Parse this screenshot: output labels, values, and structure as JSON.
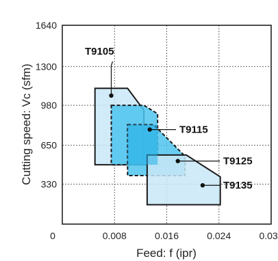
{
  "chart_data": {
    "type": "area",
    "title": "",
    "xlabel": "Feed: f (ipr)",
    "ylabel": "Cutting speed: Vc (sfm)",
    "xlim": [
      0,
      0.032
    ],
    "ylim": [
      0,
      1640
    ],
    "x_ticks": [
      "0",
      "0.008",
      "0.016",
      "0.024",
      "0.032"
    ],
    "x_tick_values": [
      0,
      0.008,
      0.016,
      0.024,
      0.032
    ],
    "y_ticks": [
      "330",
      "650",
      "980",
      "1300",
      "1640"
    ],
    "y_tick_values": [
      330,
      650,
      980,
      1300,
      1640
    ],
    "grid": true,
    "series": [
      {
        "name": "T9105",
        "color": "#c9e8f7",
        "dashed": false,
        "polygon": [
          [
            0.005,
            1120
          ],
          [
            0.01,
            1120
          ],
          [
            0.0125,
            940
          ],
          [
            0.0125,
            490
          ],
          [
            0.005,
            490
          ]
        ],
        "marker": [
          0.0075,
          1060
        ]
      },
      {
        "name": "T9115",
        "color": "#4dc4ee",
        "dashed": true,
        "polygon": [
          [
            0.0075,
            980
          ],
          [
            0.0125,
            980
          ],
          [
            0.0146,
            910
          ],
          [
            0.0146,
            490
          ],
          [
            0.0075,
            490
          ]
        ],
        "marker": [
          0.0134,
          780
        ]
      },
      {
        "name": "T9125",
        "color": "#4dc4ee",
        "dashed": true,
        "polygon": [
          [
            0.01,
            820
          ],
          [
            0.014,
            820
          ],
          [
            0.0188,
            560
          ],
          [
            0.0188,
            400
          ],
          [
            0.01,
            400
          ]
        ],
        "marker": [
          0.0177,
          520
        ]
      },
      {
        "name": "T9135",
        "color": "#c9e8f7",
        "dashed": false,
        "polygon": [
          [
            0.013,
            570
          ],
          [
            0.019,
            570
          ],
          [
            0.0242,
            390
          ],
          [
            0.0242,
            160
          ],
          [
            0.013,
            160
          ]
        ],
        "marker": [
          0.0215,
          320
        ]
      }
    ],
    "overlap_color": "#2ab0e6",
    "annotations": [
      "T9105",
      "T9115",
      "T9125",
      "T9135"
    ]
  }
}
